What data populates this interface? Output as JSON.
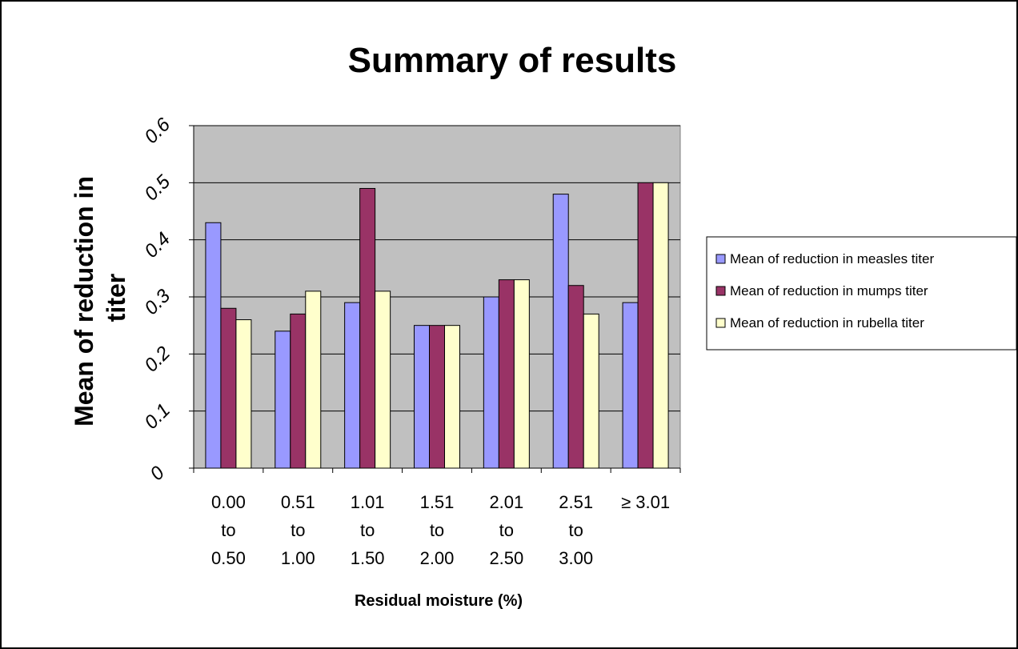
{
  "chart_data": {
    "type": "bar",
    "title": "Summary of results",
    "xlabel": "Residual moisture (%)",
    "ylabel": "Mean of reduction in titer",
    "ylim": [
      0,
      0.6
    ],
    "yticks": [
      "0",
      "0.1",
      "0.2",
      "0.3",
      "0.4",
      "0.5",
      "0.6"
    ],
    "grid": true,
    "legend_position": "right",
    "categories": [
      [
        "0.00",
        "to",
        "0.50"
      ],
      [
        "0.51",
        "to",
        "1.00"
      ],
      [
        "1.01",
        "to",
        "1.50"
      ],
      [
        "1.51",
        "to",
        "2.00"
      ],
      [
        "2.01",
        "to",
        "2.50"
      ],
      [
        "2.51",
        "to",
        "3.00"
      ],
      [
        "≥ 3.01"
      ]
    ],
    "series": [
      {
        "name": "Mean of reduction in measles titer",
        "color": "#9999ff",
        "values": [
          0.43,
          0.24,
          0.29,
          0.25,
          0.3,
          0.48,
          0.29
        ]
      },
      {
        "name": "Mean of reduction in mumps titer",
        "color": "#993366",
        "values": [
          0.28,
          0.27,
          0.49,
          0.25,
          0.33,
          0.32,
          0.5
        ]
      },
      {
        "name": "Mean of reduction in rubella titer",
        "color": "#ffffcc",
        "values": [
          0.26,
          0.31,
          0.31,
          0.25,
          0.33,
          0.27,
          0.5
        ]
      }
    ],
    "plot_background": "#c0c0c0"
  }
}
